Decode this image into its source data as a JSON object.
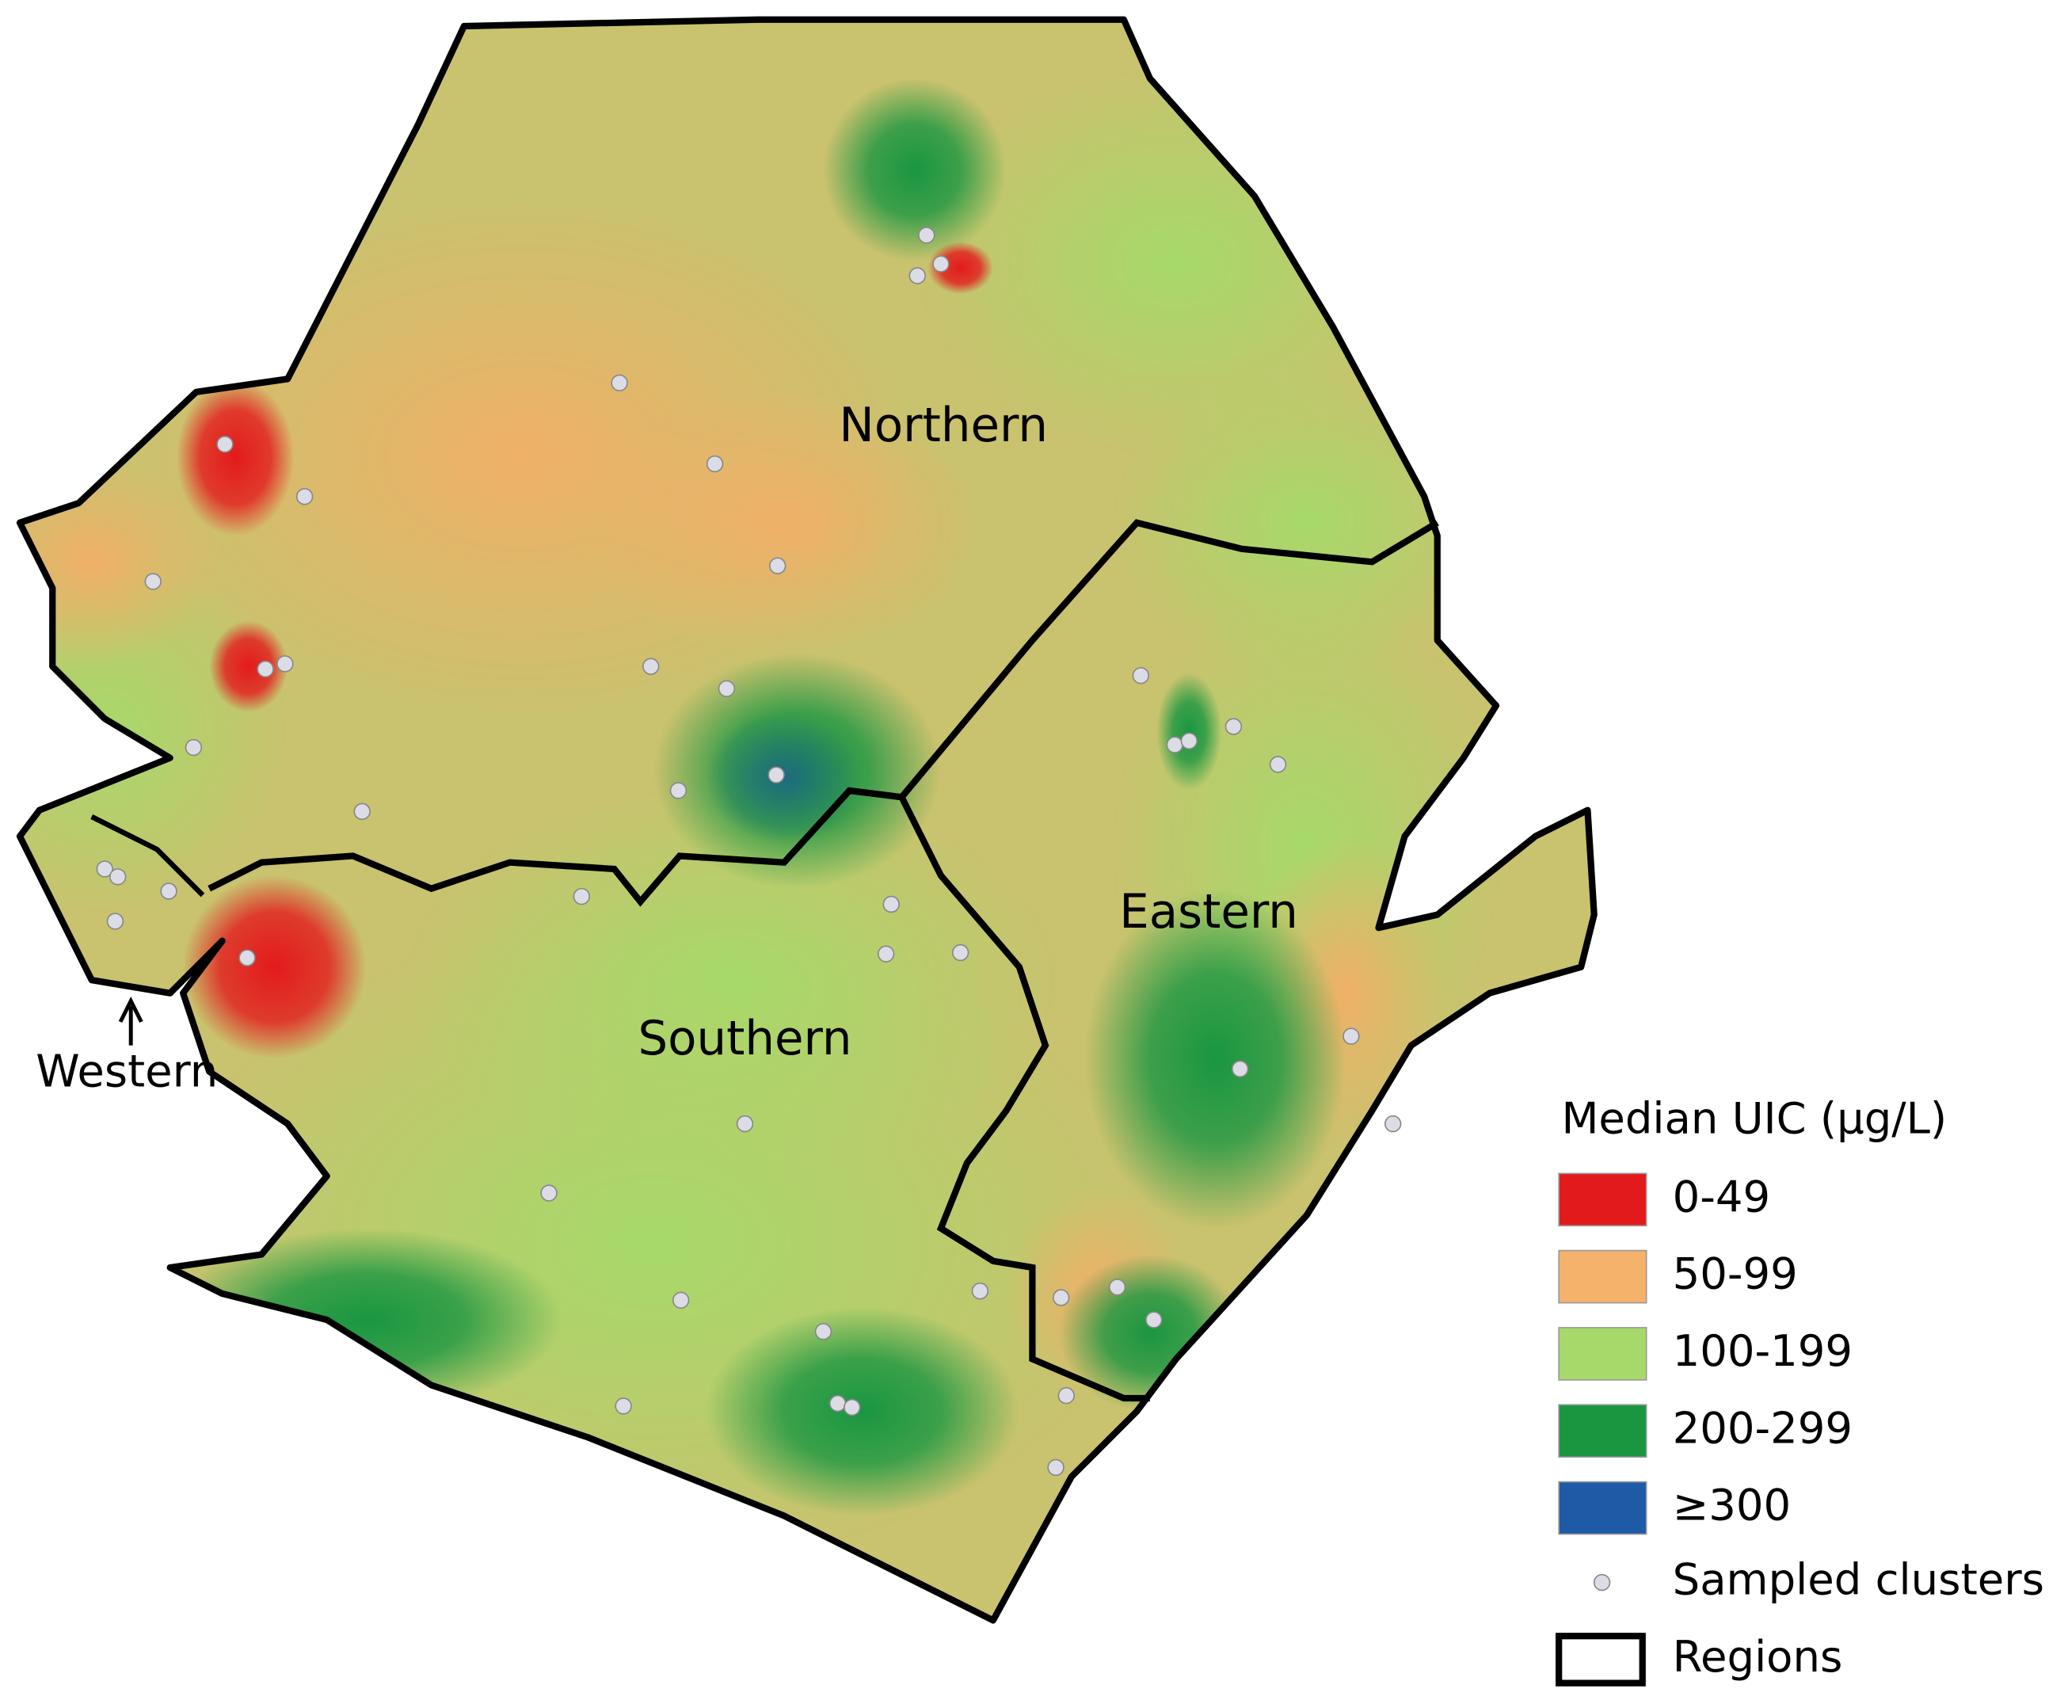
{
  "regions": [
    {
      "label": "Northern"
    },
    {
      "label": "Eastern"
    },
    {
      "label": "Southern"
    },
    {
      "label": "Western"
    }
  ],
  "legend": {
    "title": "Median UIC (µg/L)",
    "items": [
      {
        "label": "0-49",
        "color": "#e31a1c"
      },
      {
        "label": "50-99",
        "color": "#f5b26b"
      },
      {
        "label": "100-199",
        "color": "#a6d96a"
      },
      {
        "label": "200-299",
        "color": "#1a9641"
      },
      {
        "label": "≥300",
        "color": "#1f5aa6"
      }
    ],
    "clusters_label": "Sampled clusters",
    "regions_label": "Regions"
  }
}
